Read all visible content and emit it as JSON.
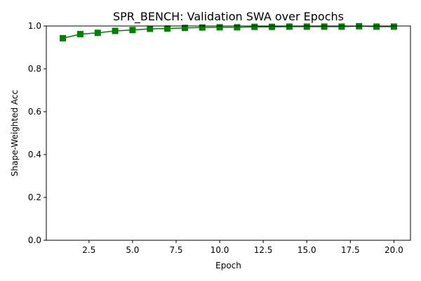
{
  "chart_data": {
    "type": "line",
    "title": "SPR_BENCH: Validation SWA over Epochs",
    "xlabel": "Epoch",
    "ylabel": "Shape-Weighted Acc",
    "xlim": [
      0.05,
      20.95
    ],
    "ylim": [
      0,
      1
    ],
    "xticks": [
      2.5,
      5.0,
      7.5,
      10.0,
      12.5,
      15.0,
      17.5,
      20.0
    ],
    "xtick_labels": [
      "2.5",
      "5.0",
      "7.5",
      "10.0",
      "12.5",
      "15.0",
      "17.5",
      "20.0"
    ],
    "yticks": [
      0.0,
      0.2,
      0.4,
      0.6,
      0.8,
      1.0
    ],
    "ytick_labels": [
      "0.0",
      "0.2",
      "0.4",
      "0.6",
      "0.8",
      "1.0"
    ],
    "grid": false,
    "series": [
      {
        "color": "#008000",
        "marker": "square",
        "x": [
          1,
          2,
          3,
          4,
          5,
          6,
          7,
          8,
          9,
          10,
          11,
          12,
          13,
          14,
          15,
          16,
          17,
          18,
          19,
          20
        ],
        "y": [
          0.943,
          0.962,
          0.968,
          0.977,
          0.981,
          0.987,
          0.988,
          0.991,
          0.993,
          0.994,
          0.994,
          0.996,
          0.996,
          0.997,
          0.997,
          0.997,
          0.997,
          0.999,
          0.997,
          0.997
        ]
      }
    ]
  }
}
